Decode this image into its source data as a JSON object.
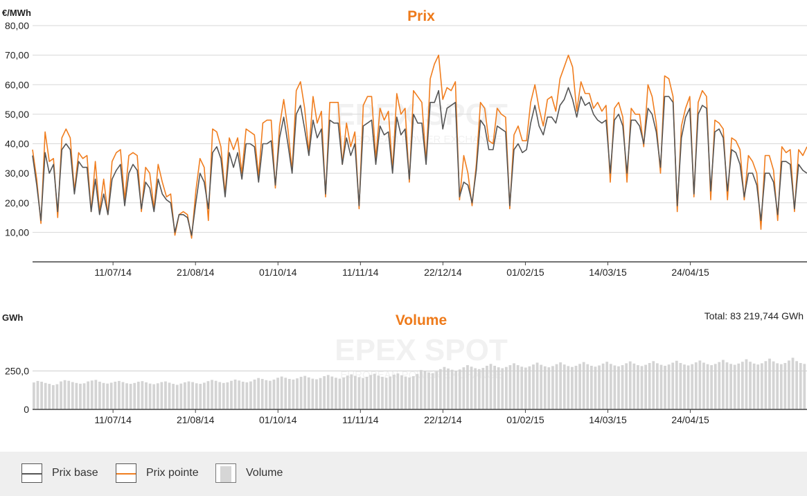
{
  "colors": {
    "base": "#555555",
    "pointe": "#f07d1e",
    "volume": "#d4d4d4",
    "title": "#ee7a1a",
    "grid": "#d7d7d7"
  },
  "chart_data": [
    {
      "type": "line",
      "title": "Prix",
      "ylabel": "€/MWh",
      "ylim": [
        0,
        80
      ],
      "yticks": [
        "10,00",
        "20,00",
        "30,00",
        "40,00",
        "50,00",
        "60,00",
        "70,00",
        "80,00"
      ],
      "x_start": "2014-06-01",
      "x_end": "2015-06-21",
      "xtick_labels": [
        "11/07/14",
        "21/08/14",
        "01/10/14",
        "11/11/14",
        "22/12/14",
        "01/02/15",
        "14/03/15",
        "24/04/15"
      ],
      "grid": true,
      "series": [
        {
          "name": "Prix base",
          "values": [
            36.0,
            26.0,
            14.0,
            37.0,
            30.0,
            33.0,
            17.0,
            38.0,
            40.0,
            38.0,
            23.0,
            34.0,
            32.0,
            32.0,
            17.0,
            28.0,
            16.0,
            23.0,
            16.0,
            28.0,
            31.0,
            33.0,
            19.0,
            30.0,
            33.0,
            31.0,
            18.0,
            27.0,
            25.0,
            17.0,
            28.0,
            23.0,
            21.0,
            20.0,
            10.0,
            16.0,
            16.0,
            15.0,
            9.0,
            20.0,
            30.0,
            27.0,
            18.0,
            37.0,
            39.0,
            35.0,
            22.0,
            37.0,
            32.0,
            37.0,
            28.0,
            40.0,
            40.0,
            39.0,
            27.0,
            40.0,
            40.0,
            41.0,
            26.0,
            42.0,
            49.0,
            40.0,
            30.0,
            50.0,
            53.0,
            45.0,
            36.0,
            48.0,
            42.0,
            45.0,
            23.0,
            48.0,
            47.0,
            47.0,
            33.0,
            42.0,
            36.0,
            40.0,
            19.0,
            46.0,
            47.0,
            48.0,
            33.0,
            46.0,
            43.0,
            44.0,
            30.0,
            49.0,
            43.0,
            45.0,
            28.0,
            50.0,
            47.0,
            47.0,
            33.0,
            54.0,
            54.0,
            58.0,
            45.0,
            52.0,
            53.0,
            54.0,
            22.0,
            27.0,
            26.0,
            20.0,
            31.0,
            48.0,
            46.0,
            38.0,
            38.0,
            46.0,
            45.0,
            44.0,
            19.0,
            38.0,
            40.0,
            37.0,
            38.0,
            47.0,
            53.0,
            46.0,
            43.0,
            49.0,
            49.0,
            47.0,
            53.0,
            55.0,
            59.0,
            55.0,
            49.0,
            56.0,
            53.0,
            54.0,
            50.0,
            48.0,
            47.0,
            48.0,
            30.0,
            48.0,
            50.0,
            46.0,
            30.0,
            48.0,
            48.0,
            46.0,
            40.0,
            52.0,
            50.0,
            44.0,
            32.0,
            56.0,
            56.0,
            54.0,
            19.0,
            42.0,
            49.0,
            52.0,
            23.0,
            50.0,
            53.0,
            52.0,
            24.0,
            44.0,
            45.0,
            42.0,
            24.0,
            38.0,
            37.0,
            33.0,
            22.0,
            30.0,
            30.0,
            26.0,
            14.0,
            30.0,
            30.0,
            27.0,
            16.0,
            34.0,
            34.0,
            33.0,
            18.0,
            33.0,
            31.0,
            30.0
          ]
        },
        {
          "name": "Prix pointe",
          "values": [
            38.0,
            28.0,
            13.0,
            44.0,
            34.0,
            35.0,
            15.0,
            42.0,
            45.0,
            42.0,
            24.0,
            37.0,
            35.0,
            36.0,
            17.0,
            34.0,
            17.0,
            28.0,
            16.0,
            34.0,
            37.0,
            38.0,
            21.0,
            36.0,
            37.0,
            36.0,
            17.0,
            32.0,
            30.0,
            18.0,
            33.0,
            27.0,
            22.0,
            23.0,
            9.0,
            16.0,
            17.0,
            16.0,
            8.0,
            24.0,
            35.0,
            32.0,
            14.0,
            45.0,
            44.0,
            39.0,
            23.0,
            42.0,
            38.0,
            42.0,
            30.0,
            45.0,
            44.0,
            43.0,
            29.0,
            47.0,
            48.0,
            48.0,
            25.0,
            46.0,
            55.0,
            45.0,
            31.0,
            58.0,
            61.0,
            52.0,
            37.0,
            56.0,
            47.0,
            51.0,
            22.0,
            54.0,
            54.0,
            54.0,
            33.0,
            47.0,
            39.0,
            44.0,
            18.0,
            53.0,
            56.0,
            56.0,
            35.0,
            52.0,
            48.0,
            51.0,
            31.0,
            57.0,
            50.0,
            52.0,
            27.0,
            58.0,
            56.0,
            54.0,
            34.0,
            62.0,
            67.0,
            70.0,
            55.0,
            59.0,
            58.0,
            61.0,
            21.0,
            36.0,
            30.0,
            19.0,
            33.0,
            54.0,
            52.0,
            41.0,
            40.0,
            52.0,
            50.0,
            49.0,
            18.0,
            43.0,
            46.0,
            41.0,
            41.0,
            54.0,
            60.0,
            52.0,
            46.0,
            55.0,
            56.0,
            51.0,
            62.0,
            66.0,
            70.0,
            66.0,
            51.0,
            61.0,
            57.0,
            57.0,
            52.0,
            54.0,
            51.0,
            53.0,
            27.0,
            52.0,
            54.0,
            49.0,
            27.0,
            52.0,
            50.0,
            50.0,
            39.0,
            60.0,
            56.0,
            47.0,
            30.0,
            63.0,
            62.0,
            56.0,
            17.0,
            46.0,
            52.0,
            56.0,
            22.0,
            54.0,
            58.0,
            56.0,
            21.0,
            48.0,
            47.0,
            45.0,
            21.0,
            42.0,
            41.0,
            38.0,
            21.0,
            36.0,
            34.0,
            30.0,
            11.0,
            36.0,
            36.0,
            31.0,
            14.0,
            39.0,
            37.0,
            38.0,
            17.0,
            38.0,
            36.0,
            39.0
          ]
        }
      ]
    },
    {
      "type": "bar",
      "title": "Volume",
      "ylabel": "GWh",
      "ylim": [
        0,
        500
      ],
      "yticks": [
        "0",
        "250,0"
      ],
      "total_label": "Total: 83 219,744 GWh",
      "x_start": "2014-06-01",
      "x_end": "2015-06-21",
      "xtick_labels": [
        "11/07/14",
        "21/08/14",
        "01/10/14",
        "11/11/14",
        "22/12/14",
        "01/02/15",
        "14/03/15",
        "24/04/15"
      ],
      "series": [
        {
          "name": "Volume",
          "values": [
            175,
            185,
            180,
            172,
            166,
            158,
            164,
            182,
            190,
            186,
            178,
            172,
            167,
            170,
            182,
            188,
            192,
            180,
            172,
            168,
            174,
            180,
            185,
            178,
            170,
            166,
            172,
            180,
            184,
            176,
            168,
            164,
            170,
            178,
            182,
            174,
            166,
            160,
            168,
            176,
            182,
            178,
            170,
            166,
            174,
            184,
            192,
            186,
            178,
            172,
            176,
            186,
            194,
            188,
            180,
            176,
            182,
            194,
            204,
            198,
            190,
            186,
            194,
            206,
            214,
            206,
            198,
            194,
            202,
            212,
            218,
            208,
            200,
            196,
            204,
            216,
            224,
            214,
            206,
            200,
            208,
            220,
            228,
            218,
            210,
            204,
            212,
            224,
            232,
            220,
            212,
            206,
            214,
            226,
            234,
            222,
            214,
            208,
            216,
            230,
            256,
            248,
            240,
            236,
            246,
            262,
            276,
            266,
            258,
            252,
            260,
            274,
            288,
            278,
            268,
            262,
            270,
            284,
            296,
            284,
            274,
            268,
            276,
            288,
            300,
            288,
            278,
            272,
            280,
            292,
            304,
            290,
            280,
            274,
            282,
            294,
            306,
            292,
            282,
            276,
            284,
            296,
            308,
            294,
            284,
            278,
            286,
            298,
            310,
            296,
            286,
            280,
            288,
            300,
            312,
            298,
            288,
            282,
            290,
            302,
            314,
            300,
            290,
            284,
            292,
            304,
            316,
            302,
            292,
            286,
            294,
            306,
            318,
            304,
            294,
            288,
            296,
            308,
            322,
            306,
            296,
            290,
            298,
            310,
            326,
            310,
            298,
            292,
            300,
            314,
            330,
            312,
            300,
            294,
            302,
            318,
            336,
            314,
            302,
            296
          ]
        }
      ]
    }
  ],
  "watermark": {
    "brand": "EPEX SPOT",
    "tagline": "EUROPEAN POWER EXCHANGE"
  },
  "legend": [
    {
      "key": "base",
      "label": "Prix base"
    },
    {
      "key": "pointe",
      "label": "Prix pointe"
    },
    {
      "key": "volume",
      "label": "Volume"
    }
  ]
}
